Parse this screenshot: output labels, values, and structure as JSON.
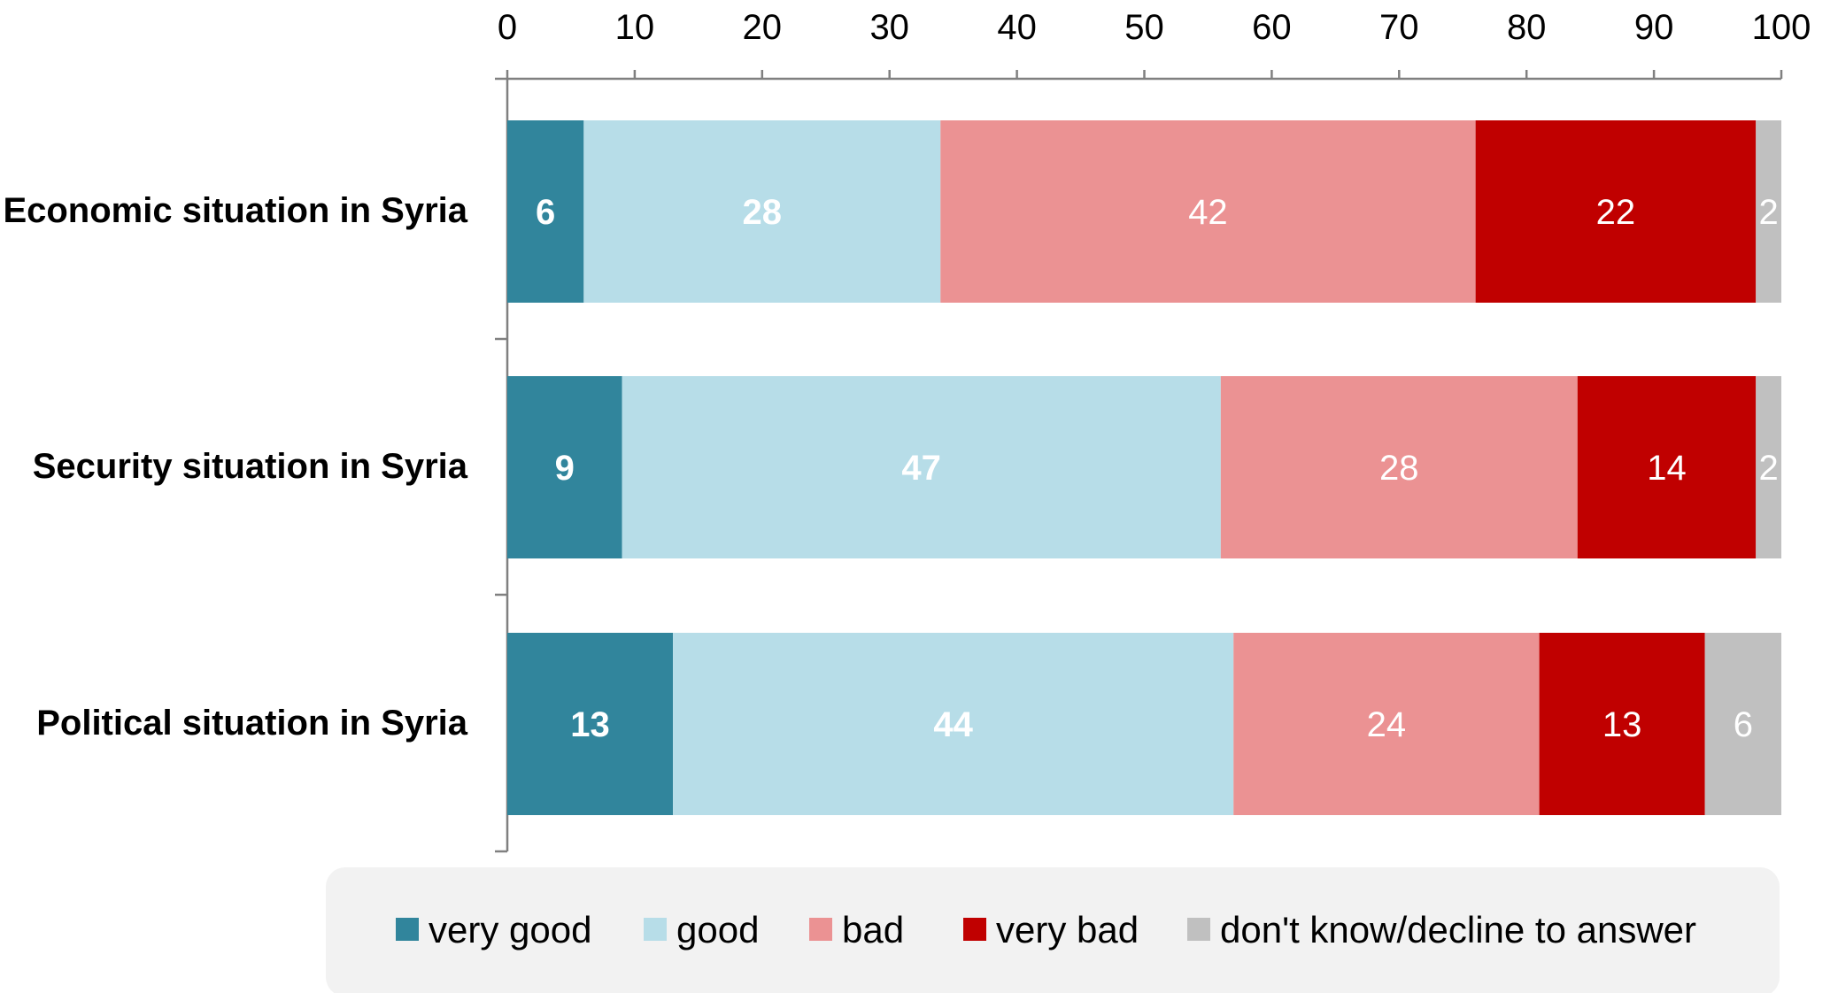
{
  "chart_data": {
    "type": "bar",
    "orientation": "horizontal",
    "stacked": true,
    "categories": [
      "Economic situation in Syria",
      "Security situation in Syria",
      "Political situation in Syria"
    ],
    "series": [
      {
        "name": "very good",
        "color": "#31859c",
        "values": [
          6,
          9,
          13
        ],
        "label_bold": true
      },
      {
        "name": "good",
        "color": "#b7dde8",
        "values": [
          28,
          47,
          44
        ],
        "label_bold": true
      },
      {
        "name": "bad",
        "color": "#eb9293",
        "values": [
          42,
          28,
          24
        ],
        "label_bold": false
      },
      {
        "name": "very bad",
        "color": "#c00000",
        "values": [
          22,
          14,
          13
        ],
        "label_bold": false
      },
      {
        "name": "don't know/decline to answer",
        "color": "#c0c0c0",
        "values": [
          2,
          2,
          6
        ],
        "label_bold": false
      }
    ],
    "xlim": [
      0,
      100
    ],
    "xticks": [
      0,
      10,
      20,
      30,
      40,
      50,
      60,
      70,
      80,
      90,
      100
    ],
    "axis_position": "top",
    "grid": false,
    "legend_position": "bottom"
  },
  "colors": {
    "axis": "#808080",
    "legend_background": "#f2f2f2"
  }
}
